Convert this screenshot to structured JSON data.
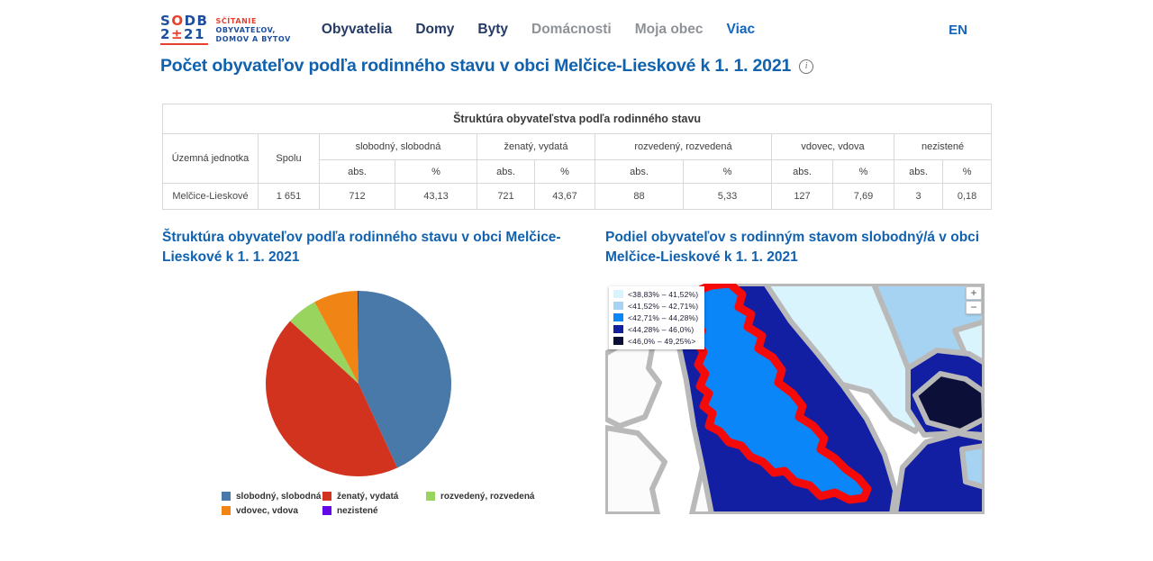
{
  "theme": {
    "title_blue": "#1162ae",
    "nav_dark": "#243a64",
    "nav_gray": "#8e9297",
    "link_blue": "#1465bd",
    "logo_blue": "#1d4f9e",
    "logo_red": "#e8402f"
  },
  "brand": {
    "l1a": "S",
    "l1b": "O",
    "l1c": "DB",
    "l2a": "2",
    "l2b": "±",
    "l2c": "21",
    "tag1": "SČÍTANIE",
    "tag2": "OBYVATEĽOV,",
    "tag3": "DOMOV A BYTOV"
  },
  "nav": {
    "items": [
      {
        "label": "Obyvatelia"
      },
      {
        "label": "Domy"
      },
      {
        "label": "Byty"
      },
      {
        "label": "Domácnosti"
      },
      {
        "label": "Moja obec"
      },
      {
        "label": "Viac"
      }
    ],
    "lang": "EN"
  },
  "page": {
    "title": "Počet obyvateľov podľa rodinného stavu v obci Melčice-Lieskové k 1. 1. 2021",
    "info_icon": "i"
  },
  "table": {
    "title": "Štruktúra obyvateľstva podľa rodinného stavu",
    "col_unit": "Územná jednotka",
    "col_total": "Spolu",
    "groups": [
      "slobodný, slobodná",
      "ženatý, vydatá",
      "rozvedený, rozvedená",
      "vdovec, vdova",
      "nezistené"
    ],
    "sub": {
      "abs": "abs.",
      "pct": "%"
    },
    "row": {
      "unit": "Melčice-Lieskové",
      "total": "1 651",
      "values": [
        "712",
        "43,13",
        "721",
        "43,67",
        "88",
        "5,33",
        "127",
        "7,69",
        "3",
        "0,18"
      ]
    }
  },
  "map_section": {
    "title": "Podiel obyvateľov s rodinným stavom slobodný/á v obci Melčice-Lieskové k 1. 1. 2021",
    "zoom_in": "+",
    "zoom_out": "−",
    "border_gray": "#b9b9b9",
    "highlight_red": "#f50a0a",
    "legend": [
      {
        "label": "<38,83% – 41,52%)",
        "color": "#d9f4fd"
      },
      {
        "label": "<41,52% – 42,71%)",
        "color": "#a6d3f2"
      },
      {
        "label": "<42,71% – 44,28%)",
        "color": "#0b86f8"
      },
      {
        "label": "<44,28% – 46,0%)",
        "color": "#121fa3"
      },
      {
        "label": "<46,0% – 49,25%>",
        "color": "#0c1038"
      }
    ]
  },
  "chart_data": [
    {
      "type": "pie",
      "title": "Štruktúra obyvateľov podľa rodinného stavu v obci Melčice-Lieskové k 1. 1. 2021",
      "categories": [
        "slobodný, slobodná",
        "ženatý, vydatá",
        "rozvedený, rozvedená",
        "vdovec, vdova",
        "nezistené"
      ],
      "values": [
        43.13,
        43.67,
        5.33,
        7.69,
        0.18
      ],
      "unit": "%",
      "colors": [
        "#4879a9",
        "#d2331f",
        "#99d45f",
        "#f08516",
        "#6307e8"
      ],
      "legend_position": "bottom",
      "start_angle_deg": 0,
      "direction": "clockwise"
    },
    {
      "type": "heatmap",
      "subtype": "choropleth-map",
      "title": "Podiel obyvateľov s rodinným stavom slobodný/á v obci Melčice-Lieskové k 1. 1. 2021",
      "classes": [
        {
          "range": "<38,83% – 41,52%)",
          "color": "#d9f4fd"
        },
        {
          "range": "<41,52% – 42,71%)",
          "color": "#a6d3f2"
        },
        {
          "range": "<42,71% – 44,28%)",
          "color": "#0b86f8"
        },
        {
          "range": "<44,28% – 46,0%)",
          "color": "#121fa3"
        },
        {
          "range": "<46,0% – 49,25%>",
          "color": "#0c1038"
        }
      ],
      "highlighted": {
        "name": "Melčice-Lieskové",
        "value": 43.13,
        "class": "<42,71% – 44,28%)"
      }
    }
  ]
}
